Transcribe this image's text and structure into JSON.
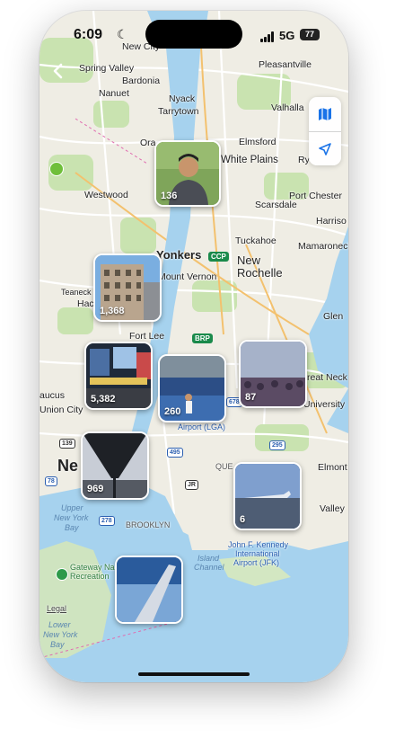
{
  "status_bar": {
    "time": "6:09",
    "network": "5G",
    "battery": "77"
  },
  "map_controls": {
    "map_mode_icon": "map-icon",
    "location_icon": "location-arrow-icon"
  },
  "map_labels": {
    "new_city": "New City",
    "pleasantville": "Pleasantville",
    "spring_valley": "Spring Valley",
    "bardonia": "Bardonia",
    "nanuet": "Nanuet",
    "nyack": "Nyack",
    "tarrytown": "Tarrytown",
    "valhalla": "Valhalla",
    "elmsford": "Elmsford",
    "white_plains": "White Plains",
    "rye": "Ry",
    "orangeburg": "Ora",
    "westwood": "Westwood",
    "scarsdale": "Scarsdale",
    "port_chester": "Port Chester",
    "harrison": "Harriso",
    "yonkers": "Yonkers",
    "tuckahoe": "Tuckahoe",
    "mamaroneck": "Mamaroneck",
    "mount_vernon": "Mount Vernon",
    "new_rochelle_1": "New",
    "new_rochelle_2": "Rochelle",
    "teaneck": "Teaneck",
    "hackensack": "Hac",
    "glen": "Glen",
    "fort_lee": "Fort Lee",
    "great_neck": "reat Neck",
    "secaucus": "aucus",
    "union_city": "Union City",
    "university": "University",
    "airport_lga": "Airport (LGA)",
    "newark": "Ne",
    "queens": "QUE",
    "elmont": "Elmont",
    "upper_ny_bay_1": "Upper",
    "upper_ny_bay_2": "New York",
    "upper_ny_bay_3": "Bay",
    "valley": "Valley",
    "brooklyn": "BROOKLYN",
    "jfk_1": "John F. Kennedy",
    "jfk_2": "International",
    "jfk_3": "Airport (JFK)",
    "gateway_1": "Gateway Na",
    "gateway_2": "Recreation",
    "island_1": "Island",
    "island_2": "Channel",
    "lower_ny_bay_1": "Lower",
    "lower_ny_bay_2": "New York",
    "lower_ny_bay_3": "Bay",
    "legal": "Legal",
    "ccp": "CCP",
    "brp": "BRP",
    "i87": "87",
    "i278": "278",
    "i78": "78",
    "i495": "495",
    "i295": "295",
    "i678": "678",
    "r139": "139",
    "jr": "JR"
  },
  "photo_clusters": [
    {
      "count": "136",
      "subject": "portrait"
    },
    {
      "count": "1,368",
      "subject": "building"
    },
    {
      "count": "5,382",
      "subject": "times-square"
    },
    {
      "count": "260",
      "subject": "tennis-stadium"
    },
    {
      "count": "87",
      "subject": "concert"
    },
    {
      "count": "969",
      "subject": "bridge-underside"
    },
    {
      "count": "6",
      "subject": "airplane-on-tarmac"
    },
    {
      "count": "",
      "subject": "airplane-wing"
    }
  ]
}
